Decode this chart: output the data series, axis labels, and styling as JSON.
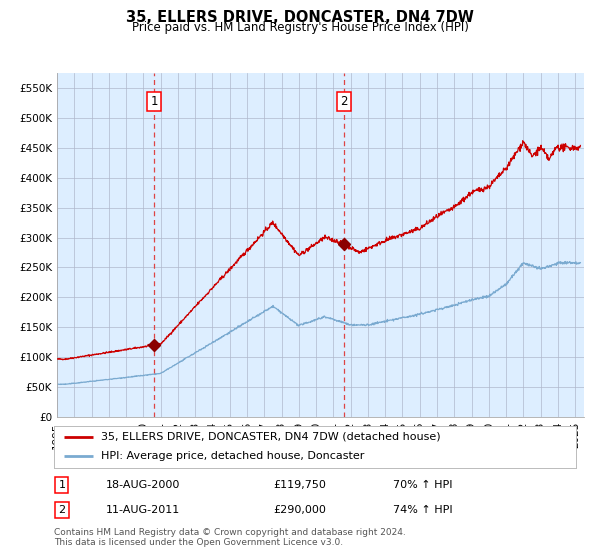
{
  "title": "35, ELLERS DRIVE, DONCASTER, DN4 7DW",
  "subtitle": "Price paid vs. HM Land Registry's House Price Index (HPI)",
  "ylabel": "",
  "xlim_start": 1995.0,
  "xlim_end": 2025.5,
  "ylim": [
    0,
    575000
  ],
  "yticks": [
    0,
    50000,
    100000,
    150000,
    200000,
    250000,
    300000,
    350000,
    400000,
    450000,
    500000,
    550000
  ],
  "background_color": "#ffffff",
  "plot_bg_color": "#ddeeff",
  "grid_color": "#b0b8cc",
  "red_line_color": "#cc0000",
  "blue_line_color": "#7aaad0",
  "dashed_line_color": "#dd4444",
  "sale1_date_x": 2000.625,
  "sale1_price": 119750,
  "sale2_date_x": 2011.614,
  "sale2_price": 290000,
  "legend_entries": [
    "35, ELLERS DRIVE, DONCASTER, DN4 7DW (detached house)",
    "HPI: Average price, detached house, Doncaster"
  ],
  "annotation1_label": "1",
  "annotation1_date": "18-AUG-2000",
  "annotation1_price": "£119,750",
  "annotation1_hpi": "70% ↑ HPI",
  "annotation2_label": "2",
  "annotation2_date": "11-AUG-2011",
  "annotation2_price": "£290,000",
  "annotation2_hpi": "74% ↑ HPI",
  "footer": "Contains HM Land Registry data © Crown copyright and database right 2024.\nThis data is licensed under the Open Government Licence v3.0.",
  "title_fontsize": 10.5,
  "subtitle_fontsize": 8.5,
  "tick_fontsize": 7.5,
  "legend_fontsize": 8,
  "annotation_fontsize": 8,
  "footer_fontsize": 6.5
}
